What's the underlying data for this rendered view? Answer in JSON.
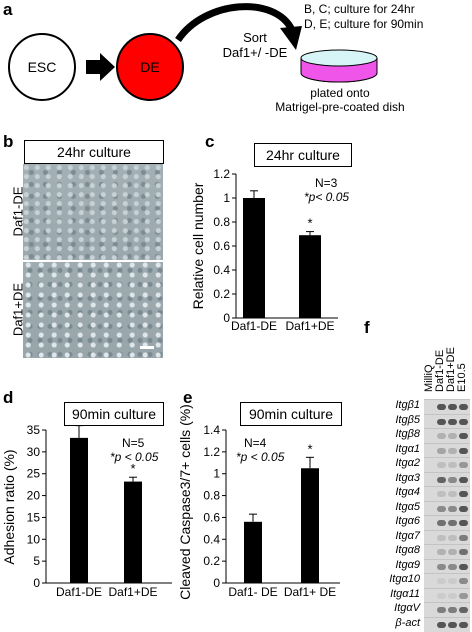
{
  "panels": {
    "a": {
      "letter": "a",
      "esc": "ESC",
      "de": "DE",
      "sort_line1": "Sort",
      "sort_line2": "Daf1+/ -DE",
      "culture_line1": "B, C; culture for 24hr",
      "culture_line2": "D, E; culture for 90min",
      "plated_line1": "plated onto",
      "plated_line2": "Matrigel-pre-coated dish",
      "de_color": "#ff0000"
    },
    "b": {
      "letter": "b",
      "title": "24hr culture",
      "row1": "Daf1-DE",
      "row2": "Daf1+DE"
    },
    "c": {
      "letter": "c",
      "title": "24hr culture",
      "n_text": "N=3",
      "p_text": "*p< 0.05",
      "star": "*"
    },
    "d": {
      "letter": "d",
      "title": "90min culture",
      "n_text": "N=5",
      "p_text": "*p < 0.05",
      "star": "*"
    },
    "e": {
      "letter": "e",
      "title": "90min culture",
      "n_text": "N=4",
      "p_text": "*p < 0.05",
      "star": "*"
    },
    "f": {
      "letter": "f",
      "lanes": [
        "MilliQ",
        "Daf1-DE",
        "Daf1+DE",
        "E10.5"
      ],
      "genes": [
        "Itgβ1",
        "Itgβ5",
        "Itgβ8",
        "Itgα1",
        "Itgα2",
        "Itgα3",
        "Itgα4",
        "Itgα5",
        "Itgα6",
        "Itgα7",
        "Itgα8",
        "Itgα9",
        "Itgα10",
        "Itgα11",
        "ItgαV",
        "β-act"
      ],
      "band_intensity": [
        [
          0,
          1,
          1,
          1
        ],
        [
          0,
          1,
          1,
          1
        ],
        [
          0,
          0.3,
          0.3,
          1
        ],
        [
          0,
          0.4,
          0.3,
          1
        ],
        [
          0,
          0.2,
          0.2,
          0.5
        ],
        [
          0,
          0.9,
          0.6,
          1
        ],
        [
          0,
          0.2,
          0.2,
          1
        ],
        [
          0,
          0.6,
          0.6,
          1
        ],
        [
          0,
          0.8,
          0.8,
          1
        ],
        [
          0,
          0.2,
          0.2,
          0.7
        ],
        [
          0,
          0.3,
          0.3,
          0.8
        ],
        [
          0,
          0.6,
          0.6,
          1
        ],
        [
          0,
          0.1,
          0.1,
          0.6
        ],
        [
          0,
          0.1,
          0.1,
          0.5
        ],
        [
          0,
          0.7,
          0.7,
          0.9
        ],
        [
          0,
          1,
          1,
          1
        ]
      ]
    }
  },
  "chart_data": [
    {
      "panel": "c",
      "type": "bar",
      "categories": [
        "Daf1-DE",
        "Daf1+DE"
      ],
      "values": [
        1.0,
        0.69
      ],
      "errors": [
        0.06,
        0.03
      ],
      "ylabel": "Relative cell number",
      "ylim": [
        0,
        1.2
      ],
      "yticks": [
        "0",
        "0.2",
        "0.4",
        "0.6",
        "0.8",
        "1",
        "1.2"
      ]
    },
    {
      "panel": "d",
      "type": "bar",
      "categories": [
        "Daf1-DE",
        "Daf1+DE"
      ],
      "values": [
        33.2,
        23.2
      ],
      "errors": [
        2.8,
        1.0
      ],
      "ylabel": "Adhesion ratio (%)",
      "ylim": [
        0,
        35
      ],
      "yticks": [
        "0",
        "5",
        "10",
        "15",
        "20",
        "25",
        "30",
        "35"
      ]
    },
    {
      "panel": "e",
      "type": "bar",
      "categories": [
        "Daf1- DE",
        "Daf1+ DE"
      ],
      "values": [
        0.56,
        1.05
      ],
      "errors": [
        0.07,
        0.1
      ],
      "ylabel": "Cleaved Caspase3/7+ cells (%)",
      "ylim": [
        0,
        1.4
      ],
      "yticks": [
        "0",
        "0.2",
        "0.4",
        "0.6",
        "0.8",
        "1",
        "1.2",
        "1.4"
      ]
    }
  ]
}
